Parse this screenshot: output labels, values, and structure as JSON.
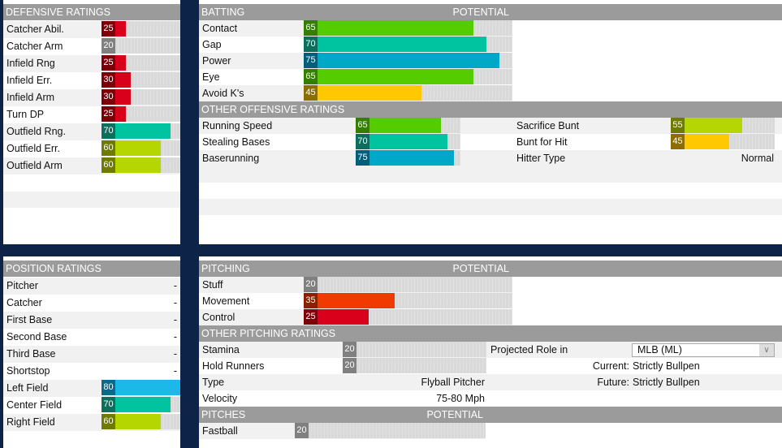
{
  "rating_colors": {
    "20": {
      "fill": "#8a8a8a",
      "box": "#808080"
    },
    "25": {
      "fill": "#d8001a",
      "box": "#7d0008"
    },
    "30": {
      "fill": "#d8001a",
      "box": "#7d0008"
    },
    "35": {
      "fill": "#f03a00",
      "box": "#8c1f00"
    },
    "45": {
      "fill": "#ffc800",
      "box": "#8c6e00"
    },
    "55": {
      "fill": "#b5d600",
      "box": "#6e7a00"
    },
    "60": {
      "fill": "#b5d600",
      "box": "#6e7a00"
    },
    "65": {
      "fill": "#55cc00",
      "box": "#357f00"
    },
    "70": {
      "fill": "#00c4a0",
      "box": "#0e6e5e"
    },
    "75": {
      "fill": "#00a8c8",
      "box": "#005f7a"
    },
    "80": {
      "fill": "#1cb8ea",
      "box": "#0a6a8a"
    }
  },
  "defensive": {
    "title": "DEFENSIVE RATINGS",
    "items": [
      {
        "label": "Catcher Abil.",
        "value": 25
      },
      {
        "label": "Catcher Arm",
        "value": 20
      },
      {
        "label": "Infield Rng",
        "value": 25
      },
      {
        "label": "Infield Err.",
        "value": 30
      },
      {
        "label": "Infield Arm",
        "value": 30
      },
      {
        "label": "Turn DP",
        "value": 25
      },
      {
        "label": "Outfield Rng.",
        "value": 70
      },
      {
        "label": "Outfield Err.",
        "value": 60
      },
      {
        "label": "Outfield Arm",
        "value": 60
      }
    ]
  },
  "batting": {
    "title": "BATTING",
    "potential_label": "POTENTIAL",
    "items": [
      {
        "label": "Contact",
        "value": 65
      },
      {
        "label": "Gap",
        "value": 70
      },
      {
        "label": "Power",
        "value": 75
      },
      {
        "label": "Eye",
        "value": 65
      },
      {
        "label": "Avoid K's",
        "value": 45
      }
    ]
  },
  "other_offensive": {
    "title": "OTHER OFFENSIVE RATINGS",
    "left": [
      {
        "label": "Running Speed",
        "value": 65
      },
      {
        "label": "Stealing Bases",
        "value": 70
      },
      {
        "label": "Baserunning",
        "value": 75
      }
    ],
    "right": [
      {
        "label": "Sacrifice Bunt",
        "value": 55
      },
      {
        "label": "Bunt for Hit",
        "value": 45
      }
    ],
    "hitter_type_label": "Hitter Type",
    "hitter_type_value": "Normal"
  },
  "position": {
    "title": "POSITION RATINGS",
    "items": [
      {
        "label": "Pitcher",
        "value": null,
        "text": "-"
      },
      {
        "label": "Catcher",
        "value": null,
        "text": "-"
      },
      {
        "label": "First Base",
        "value": null,
        "text": "-"
      },
      {
        "label": "Second Base",
        "value": null,
        "text": "-"
      },
      {
        "label": "Third Base",
        "value": null,
        "text": "-"
      },
      {
        "label": "Shortstop",
        "value": null,
        "text": "-"
      },
      {
        "label": "Left Field",
        "value": 80
      },
      {
        "label": "Center Field",
        "value": 70
      },
      {
        "label": "Right Field",
        "value": 60
      }
    ]
  },
  "pitching": {
    "title": "PITCHING",
    "potential_label": "POTENTIAL",
    "items": [
      {
        "label": "Stuff",
        "value": 20
      },
      {
        "label": "Movement",
        "value": 35
      },
      {
        "label": "Control",
        "value": 25
      }
    ]
  },
  "other_pitching": {
    "title": "OTHER PITCHING RATINGS",
    "stamina_label": "Stamina",
    "stamina_value": 20,
    "hold_label": "Hold Runners",
    "hold_value": 20,
    "type_label": "Type",
    "type_value": "Flyball Pitcher",
    "velocity_label": "Velocity",
    "velocity_value": "75-80 Mph",
    "projected_role_label": "Projected Role in",
    "projected_role_select": "MLB (ML)",
    "current_label": "Current:",
    "current_value": "Strictly Bullpen",
    "future_label": "Future:",
    "future_value": "Strictly Bullpen"
  },
  "pitches": {
    "title": "PITCHES",
    "potential_label": "POTENTIAL",
    "items": [
      {
        "label": "Fastball",
        "value": 20
      }
    ]
  }
}
